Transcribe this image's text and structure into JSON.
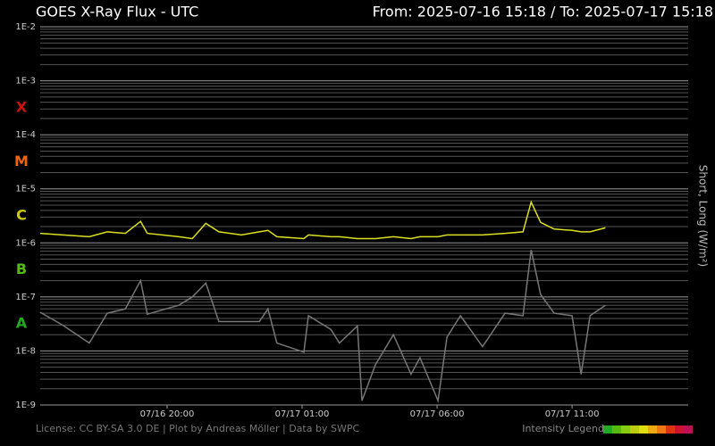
{
  "chart_data": {
    "type": "line",
    "title": "GOES X-Ray Flux - UTC",
    "subtitle": "From: 2025-07-16 15:18  /  To: 2025-07-17 15:18",
    "y_label": "Short, Long (W/m²)",
    "footer": "License: CC BY-SA 3.0 DE | Plot by Andreas Möller | Data by SWPC",
    "legend_title": "Intensity Legend",
    "legend_colors": [
      "#22aa22",
      "#55bb11",
      "#88cc11",
      "#bbcc11",
      "#dddd11",
      "#eeaa11",
      "#ee7711",
      "#dd3311",
      "#cc1133",
      "#bb1155"
    ],
    "log_scale": true,
    "grid": true,
    "x": [
      "07/16 15:18",
      "07/16 16:08",
      "07/16 17:07",
      "07/16 17:47",
      "07/16 18:27",
      "07/16 19:01",
      "07/16 19:16",
      "07/16 20:26",
      "07/16 20:56",
      "07/16 21:26",
      "07/16 21:55",
      "07/16 22:45",
      "07/16 23:25",
      "07/16 23:44",
      "07/17 00:04",
      "07/17 01:04",
      "07/17 01:14",
      "07/17 02:04",
      "07/17 02:23",
      "07/17 03:03",
      "07/17 03:13",
      "07/17 03:43",
      "07/17 04:23",
      "07/17 05:02",
      "07/17 05:22",
      "07/17 06:02",
      "07/17 06:22",
      "07/17 06:52",
      "07/17 07:41",
      "07/17 08:31",
      "07/17 09:11",
      "07/17 09:29",
      "07/17 09:50",
      "07/17 10:20",
      "07/17 11:00",
      "07/17 11:20",
      "07/17 11:40",
      "07/17 12:14"
    ],
    "xlim": [
      "07/16 15:18",
      "07/17 15:18"
    ],
    "xticks": [
      "07/16 20:00",
      "07/17 01:00",
      "07/17 06:00",
      "07/17 11:00"
    ],
    "ylim": [
      1e-09,
      0.01
    ],
    "yticks": [
      {
        "value": 1e-09,
        "label": "1E-9"
      },
      {
        "value": 1e-08,
        "label": "1E-8"
      },
      {
        "value": 1e-07,
        "label": "1E-7"
      },
      {
        "value": 1e-06,
        "label": "1E-6"
      },
      {
        "value": 1e-05,
        "label": "1E-5"
      },
      {
        "value": 0.0001,
        "label": "1E-4"
      },
      {
        "value": 0.001,
        "label": "1E-3"
      },
      {
        "value": 0.01,
        "label": "1E-2"
      }
    ],
    "flare_classes": [
      {
        "label": "A",
        "value": 1e-08,
        "color": "#22aa22"
      },
      {
        "label": "B",
        "value": 1e-07,
        "color": "#55bb11"
      },
      {
        "label": "C",
        "value": 1e-06,
        "color": "#cccc11"
      },
      {
        "label": "M",
        "value": 1e-05,
        "color": "#ee6611"
      },
      {
        "label": "X",
        "value": 0.0001,
        "color": "#cc1111"
      }
    ],
    "series": [
      {
        "name": "Long",
        "color": "#dde020",
        "values": [
          1.5e-06,
          1.4e-06,
          1.3e-06,
          1.6e-06,
          1.5e-06,
          2.5e-06,
          1.5e-06,
          1.3e-06,
          1.2e-06,
          2.3e-06,
          1.6e-06,
          1.4e-06,
          1.6e-06,
          1.7e-06,
          1.3e-06,
          1.2e-06,
          1.4e-06,
          1.3e-06,
          1.3e-06,
          1.2e-06,
          1.2e-06,
          1.2e-06,
          1.3e-06,
          1.2e-06,
          1.3e-06,
          1.3e-06,
          1.4e-06,
          1.4e-06,
          1.4e-06,
          1.5e-06,
          1.6e-06,
          5.7e-06,
          2.4e-06,
          1.8e-06,
          1.7e-06,
          1.6e-06,
          1.6e-06,
          1.9e-06
        ]
      },
      {
        "name": "Short",
        "color": "#777777",
        "values": [
          5.2e-08,
          3e-08,
          1.4e-08,
          5e-08,
          6e-08,
          2e-07,
          4.8e-08,
          7e-08,
          1e-07,
          1.8e-07,
          3.5e-08,
          3.5e-08,
          3.5e-08,
          6e-08,
          1.4e-08,
          9.5e-09,
          4.5e-08,
          2.5e-08,
          1.4e-08,
          2.9e-08,
          1.2e-09,
          5.6e-09,
          2e-08,
          3.7e-09,
          7.5e-09,
          1.2e-09,
          1.8e-08,
          4.5e-08,
          1.2e-08,
          5e-08,
          4.5e-08,
          7.4e-07,
          1.1e-07,
          5e-08,
          4.5e-08,
          3.7e-09,
          4.5e-08,
          7e-08
        ]
      }
    ]
  }
}
